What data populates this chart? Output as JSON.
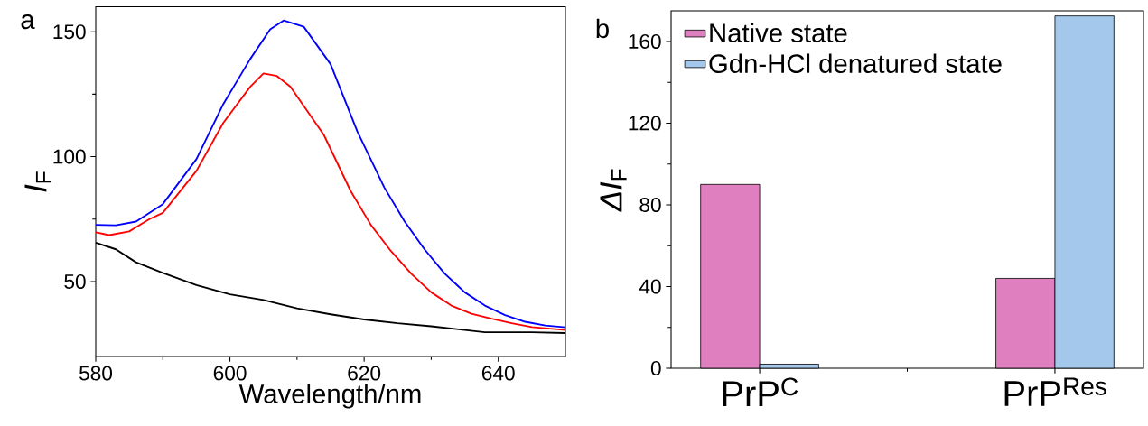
{
  "chart_data": [
    {
      "type": "line",
      "xlabel": "Wavelength/nm",
      "ylabel": "*I*$_{F}$",
      "annotations": [
        "a"
      ],
      "xlim": [
        580,
        650
      ],
      "ylim": [
        20,
        160
      ],
      "xticks": [
        580,
        600,
        620,
        640
      ],
      "yticks": [
        50,
        100,
        150
      ],
      "legend": false,
      "grid": false,
      "line_style": "solid",
      "marker": "none",
      "series": [
        {
          "color": "#0000ff",
          "x": [
            580,
            583,
            586,
            590,
            595,
            599,
            603,
            606,
            608,
            611,
            615,
            619,
            623,
            626,
            629,
            632,
            635,
            638,
            641,
            644,
            647,
            650
          ],
          "values": [
            72.7,
            72.5,
            74,
            81,
            99,
            121,
            139,
            151,
            154.5,
            152,
            137,
            110,
            87.7,
            74.2,
            62.9,
            53.2,
            45.7,
            40.4,
            36.6,
            33.9,
            32.4,
            31.7
          ]
        },
        {
          "color": "#ff0000",
          "x": [
            580,
            582,
            585,
            588,
            590,
            595,
            599,
            603,
            605,
            607,
            609,
            614,
            618,
            621,
            624,
            627,
            630,
            633,
            636,
            639,
            642,
            645,
            650
          ],
          "values": [
            69.7,
            68.6,
            70.1,
            75,
            77.5,
            94.3,
            113.5,
            127.9,
            133.3,
            132.3,
            128,
            108.7,
            86.2,
            72.7,
            62.2,
            53.2,
            45.7,
            40.4,
            37.1,
            35.1,
            33.3,
            31.8,
            30.6
          ]
        },
        {
          "color": "#000000",
          "x": [
            580,
            583,
            586,
            590,
            595,
            600,
            605,
            610,
            615,
            620,
            625,
            630,
            635,
            638,
            645,
            650
          ],
          "values": [
            65.6,
            62.9,
            57.7,
            53.5,
            48.6,
            44.9,
            42.6,
            39.3,
            36.9,
            34.8,
            33.3,
            32.1,
            30.6,
            29.7,
            29.7,
            29.4
          ]
        }
      ]
    },
    {
      "type": "bar",
      "ylabel": "*ΔI*$_{F}$",
      "annotations": [
        "b"
      ],
      "categories": [
        "PrP$^{C}$",
        "PrP$^{Res}$"
      ],
      "ylim": [
        0,
        175
      ],
      "yticks": [
        0,
        40,
        80,
        120,
        160
      ],
      "legend": "top left",
      "grid": false,
      "series": [
        {
          "name": "Native state",
          "color": "#df7fc0",
          "values": [
            90,
            44
          ]
        },
        {
          "name": "Gdn-HCl denatured state",
          "color": "#a4c8ec",
          "values": [
            2,
            172.5
          ]
        }
      ]
    }
  ]
}
